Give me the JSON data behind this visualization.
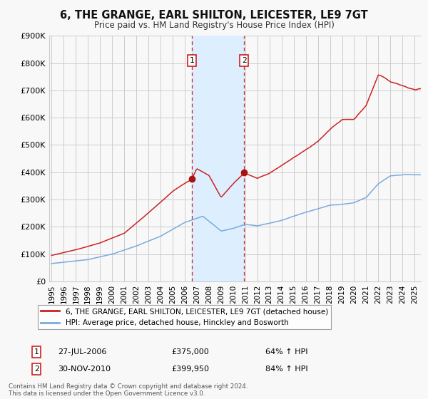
{
  "title": "6, THE GRANGE, EARL SHILTON, LEICESTER, LE9 7GT",
  "subtitle": "Price paid vs. HM Land Registry's House Price Index (HPI)",
  "legend_line1": "6, THE GRANGE, EARL SHILTON, LEICESTER, LE9 7GT (detached house)",
  "legend_line2": "HPI: Average price, detached house, Hinckley and Bosworth",
  "transaction1_label": "1",
  "transaction1_date": "27-JUL-2006",
  "transaction1_price": "£375,000",
  "transaction1_hpi": "64% ↑ HPI",
  "transaction2_label": "2",
  "transaction2_date": "30-NOV-2010",
  "transaction2_price": "£399,950",
  "transaction2_hpi": "84% ↑ HPI",
  "footer": "Contains HM Land Registry data © Crown copyright and database right 2024.\nThis data is licensed under the Open Government Licence v3.0.",
  "hpi_line_color": "#7aaadd",
  "price_line_color": "#cc2222",
  "marker_color": "#aa1111",
  "vspan_color": "#ddeeff",
  "vline_color": "#cc2222",
  "grid_color": "#cccccc",
  "background_color": "#f8f8f8",
  "ylim": [
    0,
    900000
  ],
  "yticks": [
    0,
    100000,
    200000,
    300000,
    400000,
    500000,
    600000,
    700000,
    800000,
    900000
  ],
  "ytick_labels": [
    "£0",
    "£100K",
    "£200K",
    "£300K",
    "£400K",
    "£500K",
    "£600K",
    "£700K",
    "£800K",
    "£900K"
  ],
  "transaction1_x": 2006.57,
  "transaction1_y": 375000,
  "transaction2_x": 2010.91,
  "transaction2_y": 399950,
  "vspan_x1": 2006.57,
  "vspan_x2": 2010.91,
  "xlim_start": 1994.8,
  "xlim_end": 2025.5,
  "xtick_years": [
    1995,
    1996,
    1997,
    1998,
    1999,
    2000,
    2001,
    2002,
    2003,
    2004,
    2005,
    2006,
    2007,
    2008,
    2009,
    2010,
    2011,
    2012,
    2013,
    2014,
    2015,
    2016,
    2017,
    2018,
    2019,
    2020,
    2021,
    2022,
    2023,
    2024,
    2025
  ]
}
